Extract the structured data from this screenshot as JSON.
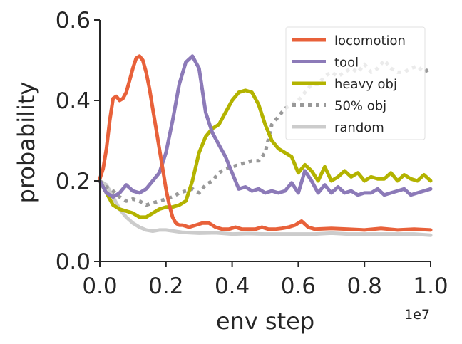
{
  "chart_data": {
    "type": "line",
    "title": "",
    "xlabel": "env step",
    "ylabel": "probability",
    "x_offset_label": "1e7",
    "xlim": [
      0,
      1.0
    ],
    "ylim": [
      0,
      0.6
    ],
    "xticks": [
      0.0,
      0.2,
      0.4,
      0.6,
      0.8,
      1.0
    ],
    "xtick_labels": [
      "0.0",
      "0.2",
      "0.4",
      "0.6",
      "0.8",
      "1.0"
    ],
    "yticks": [
      0.0,
      0.2,
      0.4,
      0.6
    ],
    "ytick_labels": [
      "0.0",
      "0.2",
      "0.4",
      "0.6"
    ],
    "grid": false,
    "legend_position": "top-right",
    "series": [
      {
        "name": "locomotion",
        "color": "#E8613A",
        "style": "solid",
        "x": [
          0.0,
          0.01,
          0.02,
          0.03,
          0.04,
          0.05,
          0.06,
          0.07,
          0.08,
          0.09,
          0.1,
          0.11,
          0.12,
          0.13,
          0.14,
          0.15,
          0.16,
          0.17,
          0.18,
          0.19,
          0.2,
          0.21,
          0.22,
          0.23,
          0.24,
          0.25,
          0.27,
          0.29,
          0.31,
          0.33,
          0.35,
          0.37,
          0.39,
          0.41,
          0.43,
          0.45,
          0.47,
          0.49,
          0.51,
          0.53,
          0.55,
          0.57,
          0.59,
          0.61,
          0.63,
          0.65,
          0.7,
          0.75,
          0.8,
          0.85,
          0.9,
          0.95,
          1.0
        ],
        "values": [
          0.205,
          0.23,
          0.28,
          0.35,
          0.405,
          0.41,
          0.4,
          0.405,
          0.42,
          0.45,
          0.48,
          0.505,
          0.51,
          0.5,
          0.47,
          0.43,
          0.38,
          0.33,
          0.28,
          0.23,
          0.18,
          0.14,
          0.11,
          0.095,
          0.09,
          0.09,
          0.085,
          0.09,
          0.095,
          0.095,
          0.085,
          0.08,
          0.08,
          0.085,
          0.08,
          0.08,
          0.08,
          0.085,
          0.08,
          0.08,
          0.082,
          0.085,
          0.09,
          0.1,
          0.085,
          0.08,
          0.082,
          0.08,
          0.078,
          0.082,
          0.078,
          0.08,
          0.078
        ]
      },
      {
        "name": "tool",
        "color": "#8C7AB8",
        "style": "solid",
        "x": [
          0.0,
          0.02,
          0.04,
          0.06,
          0.08,
          0.1,
          0.12,
          0.14,
          0.16,
          0.18,
          0.2,
          0.22,
          0.24,
          0.26,
          0.28,
          0.3,
          0.32,
          0.34,
          0.36,
          0.38,
          0.4,
          0.42,
          0.44,
          0.46,
          0.48,
          0.5,
          0.52,
          0.54,
          0.56,
          0.58,
          0.6,
          0.62,
          0.64,
          0.66,
          0.68,
          0.7,
          0.72,
          0.74,
          0.76,
          0.78,
          0.8,
          0.82,
          0.84,
          0.86,
          0.88,
          0.9,
          0.92,
          0.94,
          0.96,
          0.98,
          1.0
        ],
        "values": [
          0.2,
          0.17,
          0.16,
          0.17,
          0.19,
          0.175,
          0.17,
          0.18,
          0.2,
          0.22,
          0.27,
          0.35,
          0.44,
          0.495,
          0.51,
          0.48,
          0.37,
          0.32,
          0.29,
          0.26,
          0.22,
          0.18,
          0.185,
          0.175,
          0.18,
          0.17,
          0.175,
          0.17,
          0.175,
          0.195,
          0.17,
          0.225,
          0.2,
          0.17,
          0.19,
          0.17,
          0.185,
          0.17,
          0.175,
          0.165,
          0.17,
          0.17,
          0.18,
          0.165,
          0.17,
          0.175,
          0.18,
          0.165,
          0.17,
          0.175,
          0.18
        ]
      },
      {
        "name": "heavy obj",
        "color": "#B3B300",
        "style": "solid",
        "x": [
          0.0,
          0.02,
          0.04,
          0.06,
          0.08,
          0.1,
          0.12,
          0.14,
          0.16,
          0.18,
          0.2,
          0.22,
          0.24,
          0.26,
          0.28,
          0.3,
          0.32,
          0.34,
          0.36,
          0.38,
          0.4,
          0.42,
          0.44,
          0.46,
          0.48,
          0.5,
          0.52,
          0.54,
          0.56,
          0.58,
          0.6,
          0.62,
          0.64,
          0.66,
          0.68,
          0.7,
          0.72,
          0.74,
          0.76,
          0.78,
          0.8,
          0.82,
          0.84,
          0.86,
          0.88,
          0.9,
          0.92,
          0.94,
          0.96,
          0.98,
          1.0
        ],
        "values": [
          0.2,
          0.17,
          0.14,
          0.13,
          0.125,
          0.12,
          0.11,
          0.11,
          0.12,
          0.13,
          0.135,
          0.135,
          0.14,
          0.15,
          0.2,
          0.27,
          0.31,
          0.33,
          0.34,
          0.37,
          0.4,
          0.42,
          0.425,
          0.42,
          0.39,
          0.34,
          0.3,
          0.28,
          0.27,
          0.26,
          0.22,
          0.24,
          0.225,
          0.2,
          0.235,
          0.2,
          0.21,
          0.225,
          0.21,
          0.22,
          0.2,
          0.21,
          0.205,
          0.205,
          0.22,
          0.2,
          0.215,
          0.205,
          0.2,
          0.215,
          0.2
        ]
      },
      {
        "name": "50% obj",
        "color": "#999999",
        "style": "dotted",
        "x": [
          0.0,
          0.02,
          0.04,
          0.06,
          0.08,
          0.1,
          0.12,
          0.14,
          0.16,
          0.18,
          0.2,
          0.22,
          0.24,
          0.26,
          0.28,
          0.3,
          0.32,
          0.34,
          0.36,
          0.38,
          0.4,
          0.42,
          0.44,
          0.46,
          0.48,
          0.5,
          0.52,
          0.54,
          0.56,
          0.58,
          0.6,
          0.62,
          0.64,
          0.66,
          0.68,
          0.7,
          0.72,
          0.74,
          0.76,
          0.78,
          0.8,
          0.82,
          0.84,
          0.86,
          0.88,
          0.9,
          0.92,
          0.94,
          0.96,
          0.98,
          1.0
        ],
        "values": [
          0.2,
          0.185,
          0.175,
          0.16,
          0.15,
          0.155,
          0.15,
          0.14,
          0.145,
          0.15,
          0.155,
          0.16,
          0.17,
          0.175,
          0.18,
          0.17,
          0.19,
          0.2,
          0.22,
          0.23,
          0.235,
          0.24,
          0.245,
          0.25,
          0.25,
          0.27,
          0.34,
          0.36,
          0.38,
          0.39,
          0.4,
          0.42,
          0.44,
          0.44,
          0.46,
          0.47,
          0.46,
          0.47,
          0.48,
          0.47,
          0.49,
          0.47,
          0.48,
          0.5,
          0.48,
          0.47,
          0.47,
          0.48,
          0.485,
          0.47,
          0.48
        ]
      },
      {
        "name": "random",
        "color": "#CCCCCC",
        "style": "solid",
        "x": [
          0.0,
          0.02,
          0.04,
          0.06,
          0.08,
          0.1,
          0.12,
          0.14,
          0.16,
          0.18,
          0.2,
          0.25,
          0.3,
          0.35,
          0.4,
          0.45,
          0.5,
          0.55,
          0.6,
          0.65,
          0.7,
          0.75,
          0.8,
          0.85,
          0.9,
          0.95,
          1.0
        ],
        "values": [
          0.2,
          0.19,
          0.16,
          0.13,
          0.11,
          0.095,
          0.085,
          0.078,
          0.075,
          0.078,
          0.078,
          0.072,
          0.07,
          0.071,
          0.068,
          0.069,
          0.068,
          0.068,
          0.068,
          0.068,
          0.07,
          0.068,
          0.068,
          0.068,
          0.068,
          0.068,
          0.065
        ]
      }
    ]
  }
}
